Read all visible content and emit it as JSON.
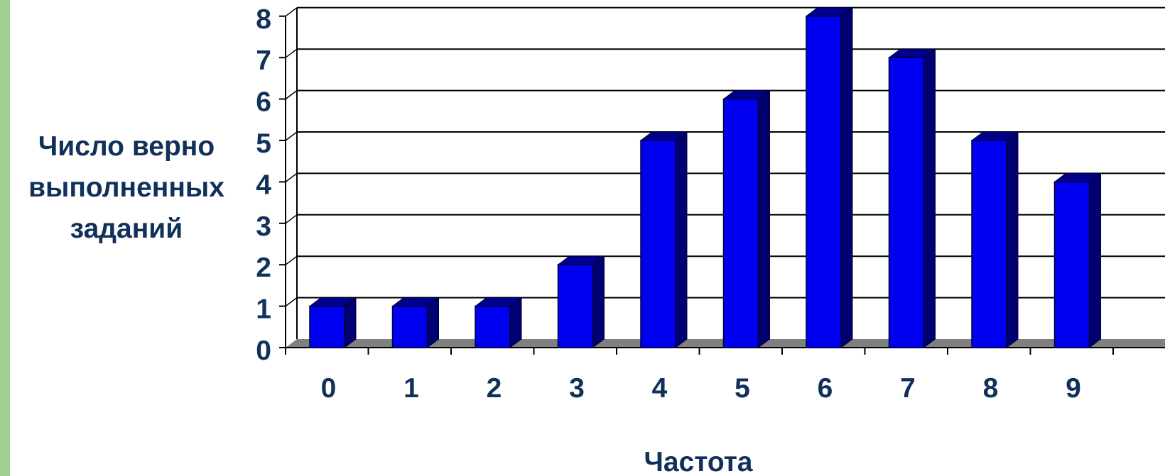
{
  "chart_data": {
    "type": "bar",
    "style": "3d-column",
    "categories": [
      "0",
      "1",
      "2",
      "3",
      "4",
      "5",
      "6",
      "7",
      "8",
      "9"
    ],
    "values": [
      1,
      1,
      1,
      2,
      5,
      6,
      8,
      7,
      5,
      4
    ],
    "xlabel": "Частота",
    "ylabel_lines": [
      "Число верно",
      "выполненных",
      "заданий"
    ],
    "ylim": [
      0,
      8
    ],
    "yticks": [
      "0",
      "1",
      "2",
      "3",
      "4",
      "5",
      "6",
      "7",
      "8"
    ],
    "grid": true,
    "legend": "none",
    "colors": {
      "bar_front": "#0000f0",
      "bar_side": "#000070",
      "bar_top": "#00008c",
      "bar_edge": "#000033",
      "text": "#11305a",
      "grid": "#000000",
      "floor": "#808080",
      "left_stripe": "#9fcf95"
    }
  }
}
